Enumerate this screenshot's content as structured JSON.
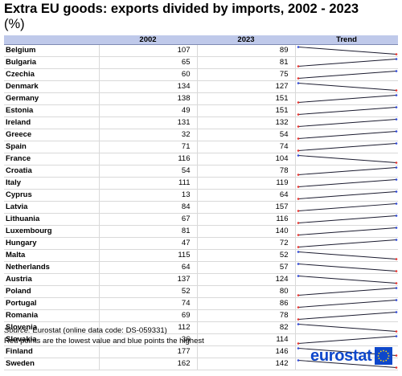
{
  "title": "Extra EU goods: exports divided by imports, 2002 - 2023",
  "subtitle": "(%)",
  "source_label": "Source:",
  "source_text": "Eurostat (online data code: DS-059331)",
  "note": "Red points are the lowest value and blue points the highest",
  "logo_text": "eurostat",
  "colors": {
    "header_bg": "#bfc9ea",
    "trend_line": "#1a1a2e",
    "lowest_point": "#e8322e",
    "highest_point": "#3149d8",
    "brand": "#0e47cb"
  },
  "chart_data": {
    "type": "table",
    "columns": [
      "",
      "2002",
      "2023",
      "Trend"
    ],
    "rows": [
      {
        "country": "Belgium",
        "v2002": 107,
        "v2023": 89
      },
      {
        "country": "Bulgaria",
        "v2002": 65,
        "v2023": 81
      },
      {
        "country": "Czechia",
        "v2002": 60,
        "v2023": 75
      },
      {
        "country": "Denmark",
        "v2002": 134,
        "v2023": 127
      },
      {
        "country": "Germany",
        "v2002": 138,
        "v2023": 151
      },
      {
        "country": "Estonia",
        "v2002": 49,
        "v2023": 151
      },
      {
        "country": "Ireland",
        "v2002": 131,
        "v2023": 132
      },
      {
        "country": "Greece",
        "v2002": 32,
        "v2023": 54
      },
      {
        "country": "Spain",
        "v2002": 71,
        "v2023": 74
      },
      {
        "country": "France",
        "v2002": 116,
        "v2023": 104
      },
      {
        "country": "Croatia",
        "v2002": 54,
        "v2023": 78
      },
      {
        "country": "Italy",
        "v2002": 111,
        "v2023": 119
      },
      {
        "country": "Cyprus",
        "v2002": 13,
        "v2023": 64
      },
      {
        "country": "Latvia",
        "v2002": 84,
        "v2023": 157
      },
      {
        "country": "Lithuania",
        "v2002": 67,
        "v2023": 116
      },
      {
        "country": "Luxembourg",
        "v2002": 81,
        "v2023": 140
      },
      {
        "country": "Hungary",
        "v2002": 47,
        "v2023": 72
      },
      {
        "country": "Malta",
        "v2002": 115,
        "v2023": 52
      },
      {
        "country": "Netherlands",
        "v2002": 64,
        "v2023": 57
      },
      {
        "country": "Austria",
        "v2002": 137,
        "v2023": 124
      },
      {
        "country": "Poland",
        "v2002": 52,
        "v2023": 80
      },
      {
        "country": "Portugal",
        "v2002": 74,
        "v2023": 86
      },
      {
        "country": "Romania",
        "v2002": 69,
        "v2023": 78
      },
      {
        "country": "Slovenia",
        "v2002": 112,
        "v2023": 82
      },
      {
        "country": "Slovakia",
        "v2002": 36,
        "v2023": 114
      },
      {
        "country": "Finland",
        "v2002": 177,
        "v2023": 146
      },
      {
        "country": "Sweden",
        "v2002": 162,
        "v2023": 142
      }
    ]
  }
}
